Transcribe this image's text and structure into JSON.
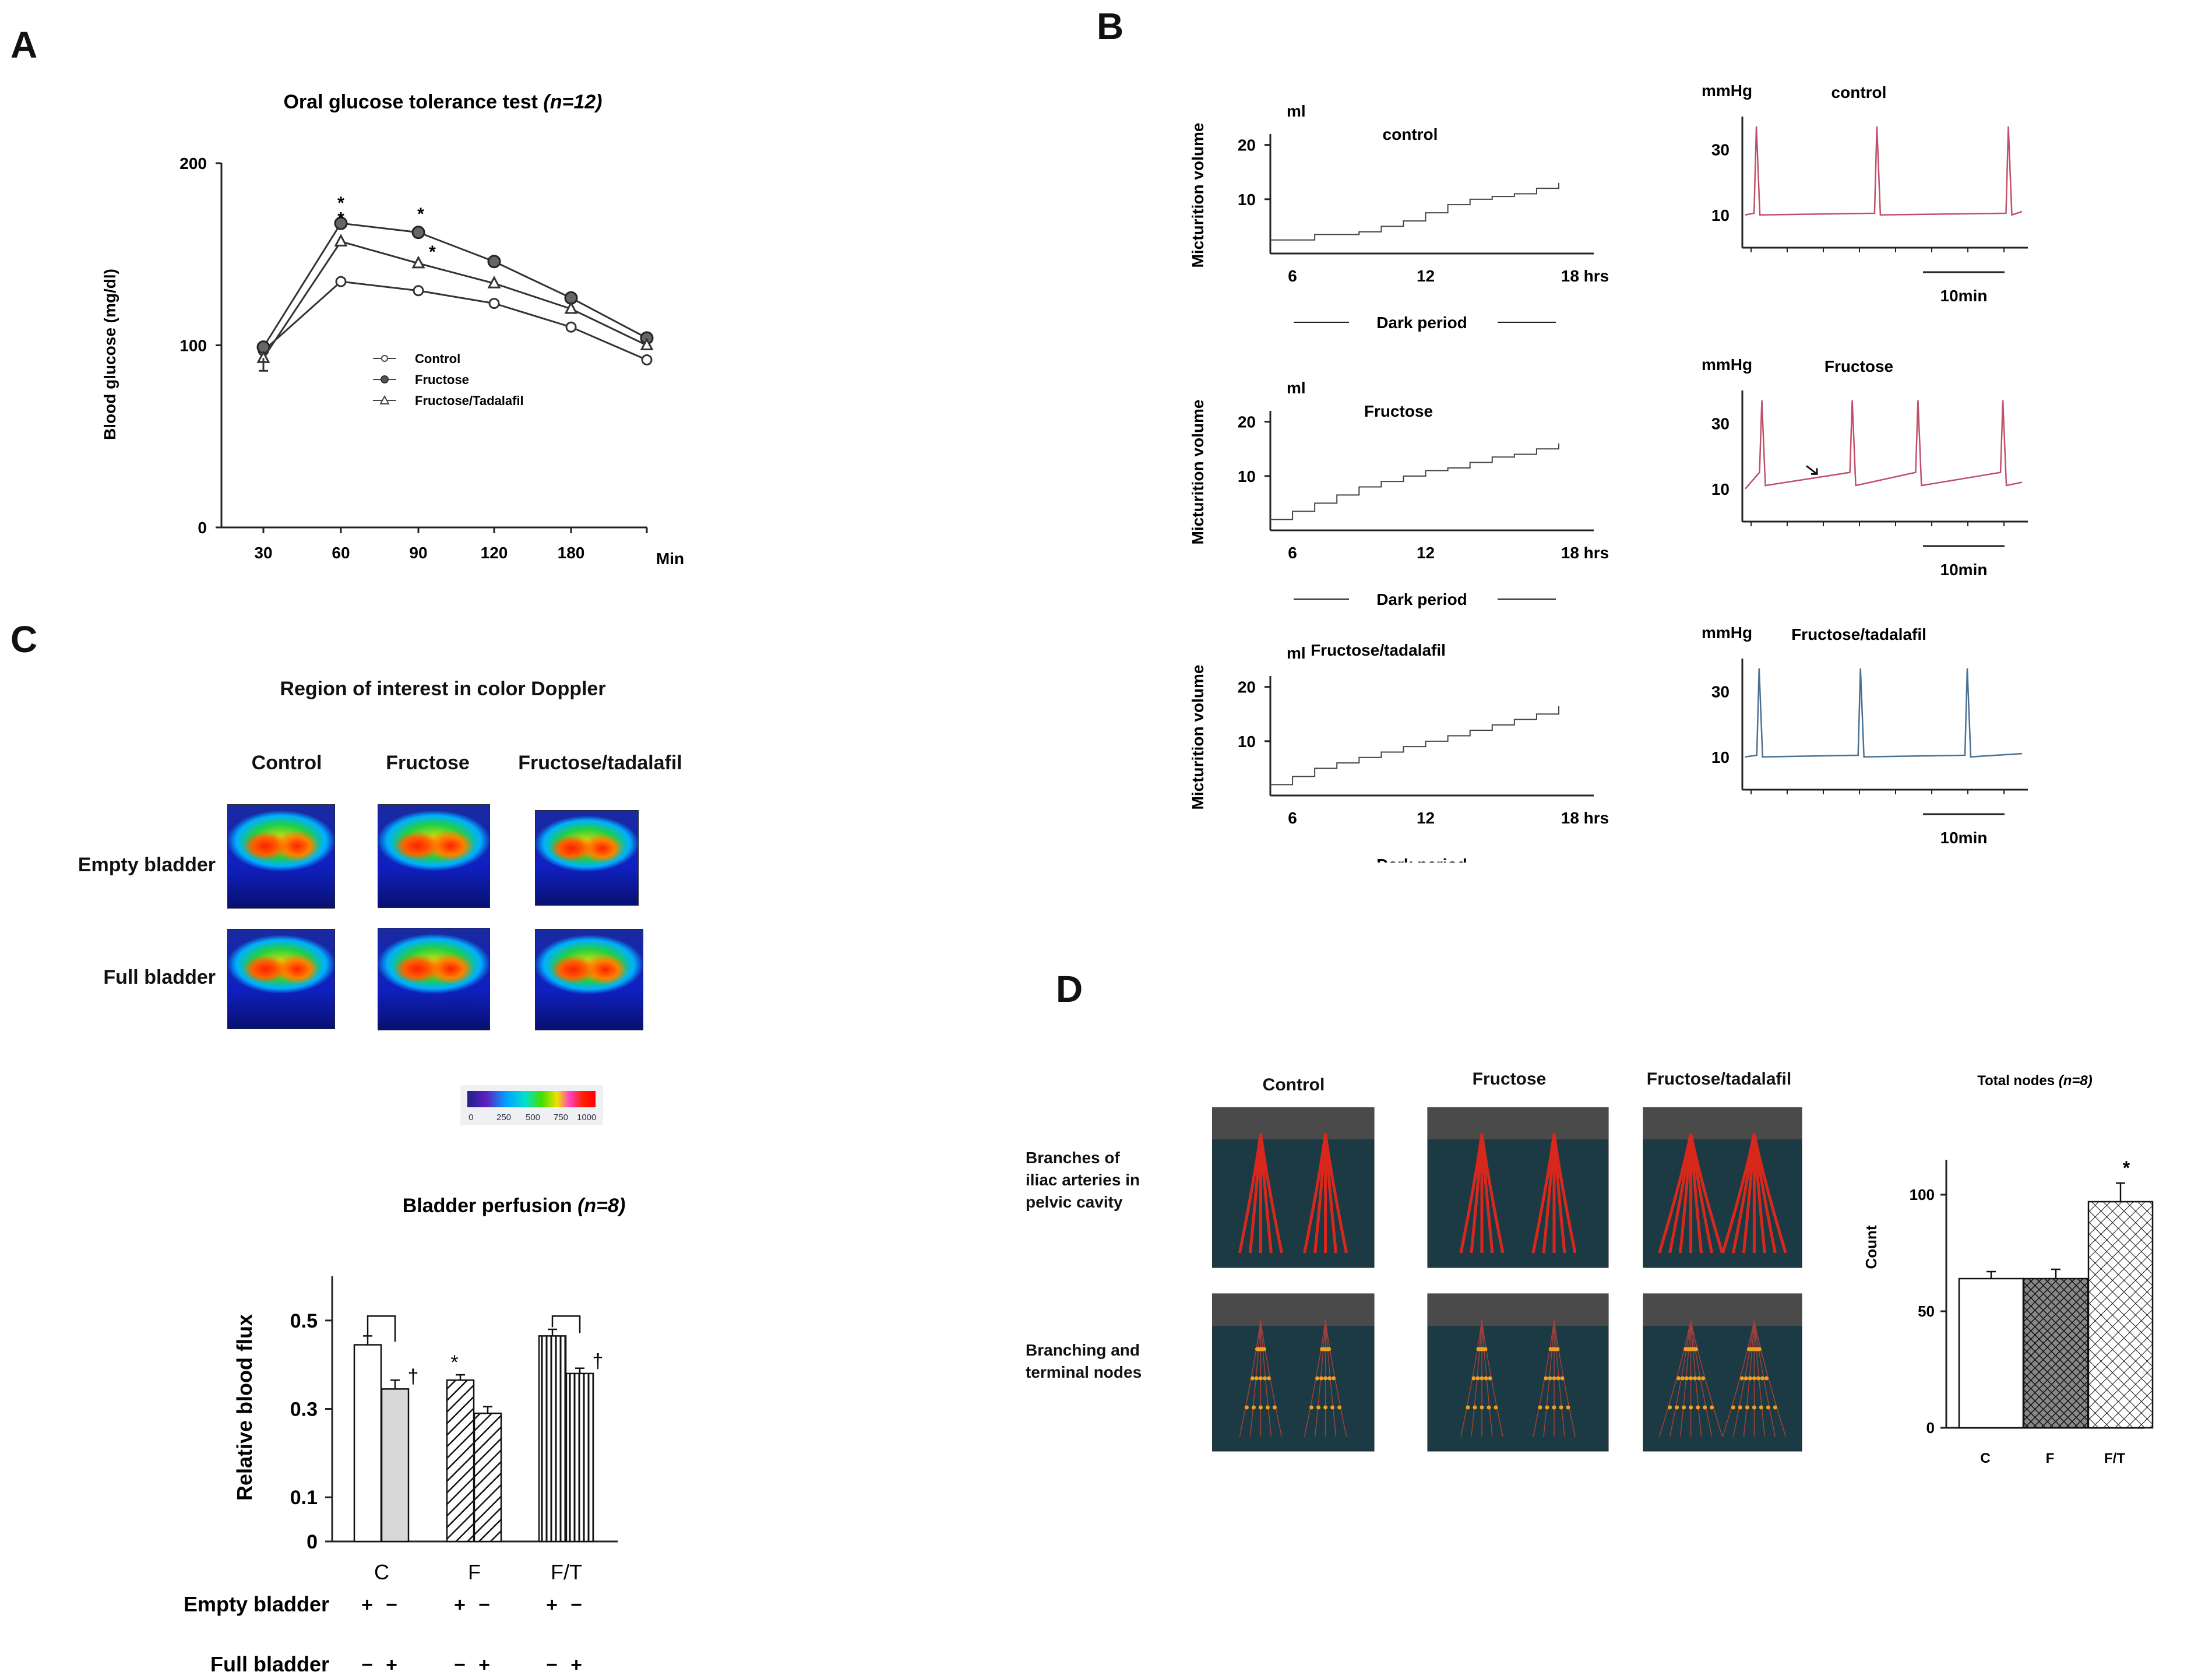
{
  "panel_labels": {
    "a": "A",
    "b": "B",
    "c": "C",
    "d": "D"
  },
  "chart_data": [
    {
      "id": "A",
      "type": "line",
      "title": "Oral glucose tolerance test",
      "title_n": "(n=12)",
      "xlabel": "Min",
      "ylabel": "Blood glucose (mg/dl)",
      "categories": [
        "30",
        "60",
        "90",
        "120",
        "180",
        ""
      ],
      "yticks": [
        "0",
        "100",
        "200"
      ],
      "ylim": [
        0,
        200
      ],
      "series": [
        {
          "name": "Control",
          "marker": "open-circle",
          "values": [
            97,
            135,
            130,
            123,
            110,
            92
          ]
        },
        {
          "name": "Fructose",
          "marker": "filled-circle",
          "values": [
            99,
            167,
            162,
            146,
            126,
            104
          ]
        },
        {
          "name": "Fructose/Tadalafil",
          "marker": "open-triangle",
          "values": [
            93,
            157,
            145,
            134,
            120,
            100
          ]
        }
      ],
      "annotations": [
        "*",
        "*",
        "*",
        "*"
      ]
    },
    {
      "id": "B-volume",
      "type": "line",
      "ylabel": "Micturition volume",
      "yunit": "ml",
      "yticks": [
        "10",
        "20"
      ],
      "xticks": [
        "6",
        "12",
        "18 hrs"
      ],
      "xcaption": "Dark period",
      "ylim": [
        0,
        22
      ],
      "panels": [
        {
          "title": "control",
          "x": [
            5,
            7,
            9,
            10,
            11,
            12,
            13,
            14,
            15,
            16,
            17,
            18
          ],
          "values": [
            2.5,
            3.5,
            4,
            5,
            6,
            7.5,
            9,
            10,
            10.5,
            11,
            12,
            13
          ]
        },
        {
          "title": "Fructose",
          "x": [
            5,
            6,
            7,
            8,
            9,
            10,
            11,
            12,
            13,
            14,
            15,
            16,
            17,
            18
          ],
          "values": [
            2,
            3.5,
            5,
            6.5,
            8,
            9,
            10,
            11,
            11.5,
            12.5,
            13.5,
            14,
            15,
            16
          ]
        },
        {
          "title": "Fructose/tadalafil",
          "x": [
            5,
            6,
            7,
            8,
            9,
            10,
            11,
            12,
            13,
            14,
            15,
            16,
            17,
            18
          ],
          "values": [
            2,
            3.5,
            5,
            6,
            7,
            8,
            9,
            10,
            11,
            12,
            13,
            14,
            15,
            16.5
          ]
        }
      ]
    },
    {
      "id": "B-pressure",
      "type": "line",
      "yunit": "mmHg",
      "yticks": [
        "10",
        "30"
      ],
      "scalebar": "10min",
      "ylim": [
        0,
        40
      ],
      "panels": [
        {
          "title": "control",
          "color": "#c0506a"
        },
        {
          "title": "Fructose",
          "color": "#c0506a"
        },
        {
          "title": "Fructose/tadalafil",
          "color": "#4a7090"
        }
      ]
    },
    {
      "id": "C-perfusion",
      "type": "bar",
      "title": "Bladder perfusion",
      "title_n": "(n=8)",
      "ylabel": "Relative blood flux",
      "yticks": [
        "0",
        "0.1",
        "0.3",
        "0.5"
      ],
      "ylim": [
        0,
        0.6
      ],
      "categories": [
        "C",
        "F",
        "F/T"
      ],
      "bars": [
        {
          "group": "C",
          "state": "empty",
          "value": 0.445,
          "err": 0.02,
          "fill": "white"
        },
        {
          "group": "C",
          "state": "full",
          "value": 0.345,
          "err": 0.02,
          "fill": "gray",
          "mark": "†"
        },
        {
          "group": "F",
          "state": "empty",
          "value": 0.365,
          "err": 0.012,
          "fill": "hatch",
          "mark": "*"
        },
        {
          "group": "F",
          "state": "full",
          "value": 0.29,
          "err": 0.015,
          "fill": "hatch"
        },
        {
          "group": "F/T",
          "state": "empty",
          "value": 0.465,
          "err": 0.015,
          "fill": "vstripe"
        },
        {
          "group": "F/T",
          "state": "full",
          "value": 0.38,
          "err": 0.012,
          "fill": "vstripe",
          "mark": "†"
        }
      ],
      "row_labels": [
        "Empty bladder",
        "Full bladder"
      ],
      "empty_signs": [
        "+",
        "−",
        "+",
        "−",
        "+",
        "−"
      ],
      "full_signs": [
        "−",
        "+",
        "−",
        "+",
        "−",
        "+"
      ]
    },
    {
      "id": "D-nodes",
      "type": "bar",
      "title": "Total nodes",
      "title_n": "(n=8)",
      "ylabel": "Count",
      "yticks": [
        "0",
        "50",
        "100"
      ],
      "ylim": [
        0,
        115
      ],
      "categories": [
        "C",
        "F",
        "F/T"
      ],
      "values": [
        64,
        64,
        97
      ],
      "errors": [
        3,
        4,
        8
      ],
      "annotations": [
        "",
        "",
        "*"
      ]
    }
  ],
  "legend_a": [
    "Control",
    "Fructose",
    "Fructose/Tadalafil"
  ],
  "panel_c": {
    "title": "Region of interest in color Doppler",
    "columns": [
      "Control",
      "Fructose",
      "Fructose/tadalafil"
    ],
    "rows": [
      "Empty bladder",
      "Full bladder"
    ],
    "colorbar_ticks": [
      "0",
      "250",
      "500",
      "750",
      "1000"
    ]
  },
  "panel_d": {
    "columns": [
      "Control",
      "Fructose",
      "Fructose/tadalafil"
    ],
    "row1": [
      "Branches of",
      "iliac arteries in",
      "pelvic cavity"
    ],
    "row2": [
      "Branching and",
      "terminal nodes"
    ]
  },
  "colors": {
    "control_trace": "#c0506a",
    "tadalafil_trace": "#4a7090",
    "doppler_bg": "#1a2aa0",
    "vessel_red": "#e02a20"
  }
}
